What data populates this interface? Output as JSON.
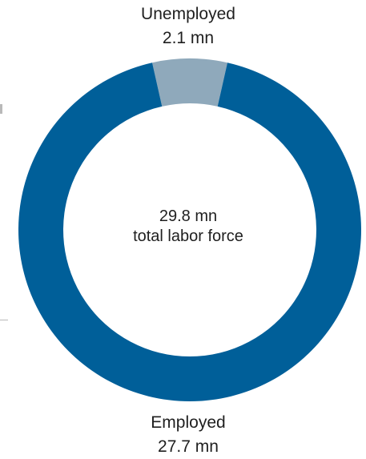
{
  "chart_data": {
    "type": "pie",
    "donut": true,
    "title": "",
    "center_value": "29.8 mn",
    "center_text": "total labor force",
    "slices": [
      {
        "name": "Unemployed",
        "value": 2.1,
        "value_label": "2.1 mn",
        "color": "#8fa9bb"
      },
      {
        "name": "Employed",
        "value": 27.7,
        "value_label": "27.7 mn",
        "color": "#005f99"
      }
    ],
    "total": 29.8,
    "legend": "none"
  }
}
